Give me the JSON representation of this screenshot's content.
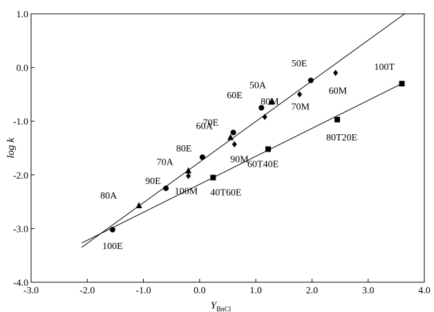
{
  "chart_data": {
    "type": "scatter",
    "xlabel": "Y",
    "xlabel_sub": "BnCl",
    "ylabel": "log k",
    "xlim": [
      -3.0,
      4.0
    ],
    "ylim": [
      -4.0,
      1.0
    ],
    "x_ticks": [
      -3.0,
      -2.0,
      -1.0,
      0.0,
      1.0,
      2.0,
      3.0,
      4.0
    ],
    "x_tick_labels": [
      "-3.0",
      "-2.0",
      "-1.0",
      "0.0",
      "1.0",
      "2.0",
      "3.0",
      "4.0"
    ],
    "y_ticks": [
      1.0,
      0.0,
      -1.0,
      -2.0,
      -3.0,
      -4.0
    ],
    "y_tick_labels": [
      "1.0",
      "0.0",
      "-1.0",
      "-2.0",
      "-3.0",
      "-4.0"
    ],
    "grid": false,
    "series": [
      {
        "marker": "circle",
        "points": [
          {
            "label": "100E",
            "x": -1.55,
            "y": -3.02
          },
          {
            "label": "90E",
            "x": -0.6,
            "y": -2.25
          },
          {
            "label": "80E",
            "x": 0.05,
            "y": -1.67
          },
          {
            "label": "70E",
            "x": 0.6,
            "y": -1.21
          },
          {
            "label": "60E",
            "x": 1.1,
            "y": -0.75
          },
          {
            "label": "50E",
            "x": 1.98,
            "y": -0.24
          }
        ]
      },
      {
        "marker": "triangle",
        "points": [
          {
            "label": "80A",
            "x": -1.08,
            "y": -2.57
          },
          {
            "label": "70A",
            "x": -0.2,
            "y": -1.92
          },
          {
            "label": "60A",
            "x": 0.55,
            "y": -1.3
          },
          {
            "label": "50A",
            "x": 1.28,
            "y": -0.64
          }
        ]
      },
      {
        "marker": "diamond",
        "points": [
          {
            "label": "100M",
            "x": -0.2,
            "y": -2.02
          },
          {
            "label": "90M",
            "x": 0.62,
            "y": -1.43
          },
          {
            "label": "80M",
            "x": 1.16,
            "y": -0.92
          },
          {
            "label": "70M",
            "x": 1.78,
            "y": -0.5
          },
          {
            "label": "60M",
            "x": 2.42,
            "y": -0.1
          }
        ]
      },
      {
        "marker": "square",
        "points": [
          {
            "label": "40T60E",
            "x": 0.24,
            "y": -2.05
          },
          {
            "label": "60T40E",
            "x": 1.22,
            "y": -1.52
          },
          {
            "label": "80T20E",
            "x": 2.45,
            "y": -0.97
          },
          {
            "label": "100T",
            "x": 3.6,
            "y": -0.3
          }
        ]
      }
    ],
    "fit_lines": [
      {
        "from": [
          -2.1,
          -3.35
        ],
        "to": [
          3.65,
          1.0
        ]
      },
      {
        "from": [
          -2.1,
          -3.27
        ],
        "to": [
          3.6,
          -0.3
        ]
      }
    ]
  }
}
